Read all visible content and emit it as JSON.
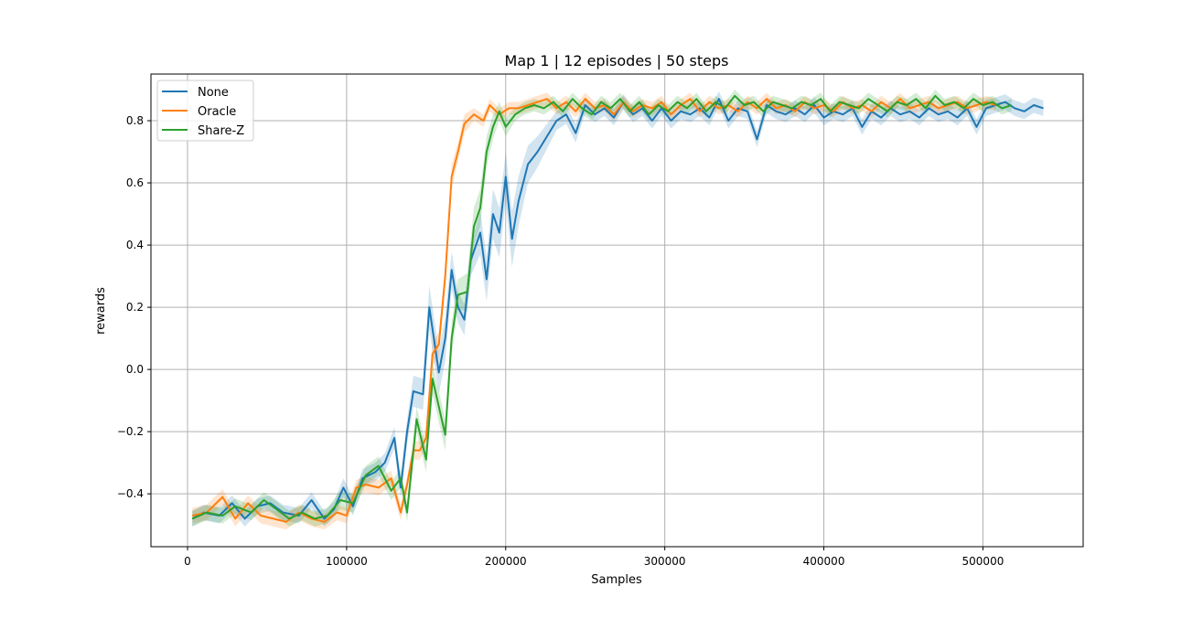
{
  "chart_data": {
    "type": "line",
    "title": "Map 1 | 12 episodes | 50 steps",
    "xlabel": "Samples",
    "ylabel": "rewards",
    "xlim": [
      -23000,
      563000
    ],
    "ylim": [
      -0.57,
      0.95
    ],
    "xticks": [
      0,
      100000,
      200000,
      300000,
      400000,
      500000
    ],
    "yticks": [
      -0.4,
      -0.2,
      0.0,
      0.2,
      0.4,
      0.6,
      0.8
    ],
    "ytick_labels": [
      "−0.4",
      "−0.2",
      "0.0",
      "0.2",
      "0.4",
      "0.6",
      "0.8"
    ],
    "grid": true,
    "legend_position": "top-left",
    "series": [
      {
        "name": "None",
        "color": "#1f77b4",
        "x": [
          3000,
          10000,
          20000,
          28000,
          36000,
          44000,
          52000,
          60000,
          70000,
          78000,
          86000,
          92000,
          98000,
          104000,
          110000,
          118000,
          124000,
          130000,
          134000,
          138000,
          142000,
          148000,
          152000,
          158000,
          162000,
          166000,
          170000,
          174000,
          178000,
          184000,
          188000,
          192000,
          196000,
          200000,
          204000,
          208000,
          214000,
          220000,
          226000,
          232000,
          238000,
          244000,
          250000,
          256000,
          262000,
          268000,
          274000,
          280000,
          286000,
          292000,
          298000,
          304000,
          310000,
          316000,
          322000,
          328000,
          334000,
          340000,
          346000,
          352000,
          358000,
          364000,
          370000,
          376000,
          382000,
          388000,
          394000,
          400000,
          406000,
          412000,
          418000,
          424000,
          430000,
          436000,
          442000,
          448000,
          454000,
          460000,
          466000,
          472000,
          478000,
          484000,
          490000,
          496000,
          502000,
          508000,
          514000,
          520000,
          526000,
          532000,
          538000
        ],
        "y": [
          -0.48,
          -0.46,
          -0.47,
          -0.43,
          -0.48,
          -0.44,
          -0.43,
          -0.46,
          -0.47,
          -0.42,
          -0.48,
          -0.45,
          -0.38,
          -0.44,
          -0.35,
          -0.33,
          -0.3,
          -0.22,
          -0.38,
          -0.2,
          -0.07,
          -0.08,
          0.2,
          -0.01,
          0.1,
          0.32,
          0.2,
          0.16,
          0.35,
          0.44,
          0.29,
          0.5,
          0.44,
          0.62,
          0.42,
          0.54,
          0.66,
          0.7,
          0.75,
          0.8,
          0.82,
          0.76,
          0.85,
          0.82,
          0.84,
          0.81,
          0.86,
          0.82,
          0.84,
          0.8,
          0.84,
          0.8,
          0.83,
          0.82,
          0.84,
          0.81,
          0.87,
          0.8,
          0.84,
          0.83,
          0.74,
          0.85,
          0.83,
          0.82,
          0.84,
          0.82,
          0.85,
          0.81,
          0.83,
          0.82,
          0.84,
          0.78,
          0.83,
          0.81,
          0.84,
          0.82,
          0.83,
          0.81,
          0.84,
          0.82,
          0.83,
          0.81,
          0.84,
          0.78,
          0.84,
          0.85,
          0.86,
          0.84,
          0.83,
          0.85,
          0.84
        ],
        "band": [
          0.025,
          0.025,
          0.025,
          0.025,
          0.025,
          0.025,
          0.025,
          0.025,
          0.025,
          0.025,
          0.025,
          0.025,
          0.03,
          0.03,
          0.03,
          0.03,
          0.03,
          0.035,
          0.035,
          0.04,
          0.05,
          0.05,
          0.07,
          0.07,
          0.07,
          0.06,
          0.05,
          0.05,
          0.05,
          0.07,
          0.07,
          0.08,
          0.08,
          0.08,
          0.09,
          0.08,
          0.06,
          0.05,
          0.04,
          0.03,
          0.03,
          0.03,
          0.025,
          0.025,
          0.025,
          0.025,
          0.025,
          0.025,
          0.025,
          0.025,
          0.025,
          0.025,
          0.025,
          0.025,
          0.025,
          0.025,
          0.025,
          0.025,
          0.025,
          0.025,
          0.025,
          0.025,
          0.025,
          0.025,
          0.025,
          0.025,
          0.025,
          0.025,
          0.025,
          0.025,
          0.025,
          0.025,
          0.025,
          0.025,
          0.025,
          0.025,
          0.025,
          0.025,
          0.025,
          0.025,
          0.025,
          0.025,
          0.025,
          0.025,
          0.025,
          0.025,
          0.025,
          0.025,
          0.025,
          0.025,
          0.025
        ]
      },
      {
        "name": "Oracle",
        "color": "#ff7f0e",
        "x": [
          3000,
          12000,
          22000,
          30000,
          38000,
          46000,
          54000,
          62000,
          70000,
          78000,
          86000,
          94000,
          100000,
          106000,
          112000,
          120000,
          128000,
          134000,
          138000,
          142000,
          146000,
          150000,
          154000,
          158000,
          162000,
          166000,
          170000,
          174000,
          180000,
          186000,
          190000,
          196000,
          202000,
          208000,
          214000,
          220000,
          226000,
          232000,
          238000,
          244000,
          250000,
          256000,
          262000,
          268000,
          274000,
          280000,
          286000,
          292000,
          298000,
          304000,
          310000,
          316000,
          322000,
          328000,
          334000,
          340000,
          346000,
          352000,
          358000,
          364000,
          370000,
          376000,
          382000,
          388000,
          394000,
          400000,
          406000,
          412000,
          418000,
          424000,
          430000,
          436000,
          442000,
          448000,
          454000,
          460000,
          466000,
          472000,
          478000,
          484000,
          490000,
          496000,
          502000,
          508000
        ],
        "y": [
          -0.47,
          -0.46,
          -0.41,
          -0.48,
          -0.43,
          -0.47,
          -0.48,
          -0.49,
          -0.46,
          -0.48,
          -0.49,
          -0.46,
          -0.47,
          -0.38,
          -0.37,
          -0.38,
          -0.35,
          -0.46,
          -0.37,
          -0.26,
          -0.26,
          -0.22,
          0.05,
          0.08,
          0.3,
          0.62,
          0.7,
          0.79,
          0.82,
          0.8,
          0.85,
          0.82,
          0.84,
          0.84,
          0.85,
          0.86,
          0.87,
          0.84,
          0.86,
          0.83,
          0.87,
          0.84,
          0.85,
          0.82,
          0.86,
          0.83,
          0.85,
          0.84,
          0.86,
          0.82,
          0.85,
          0.87,
          0.83,
          0.86,
          0.84,
          0.85,
          0.83,
          0.86,
          0.84,
          0.87,
          0.84,
          0.85,
          0.83,
          0.86,
          0.84,
          0.85,
          0.83,
          0.86,
          0.84,
          0.85,
          0.83,
          0.86,
          0.84,
          0.87,
          0.84,
          0.85,
          0.86,
          0.84,
          0.85,
          0.86,
          0.84,
          0.85,
          0.86,
          0.85
        ],
        "band": [
          0.025,
          0.025,
          0.025,
          0.025,
          0.025,
          0.025,
          0.025,
          0.025,
          0.025,
          0.025,
          0.025,
          0.025,
          0.025,
          0.025,
          0.025,
          0.025,
          0.025,
          0.025,
          0.025,
          0.03,
          0.03,
          0.03,
          0.04,
          0.04,
          0.04,
          0.04,
          0.03,
          0.03,
          0.02,
          0.02,
          0.02,
          0.02,
          0.02,
          0.02,
          0.02,
          0.02,
          0.02,
          0.02,
          0.02,
          0.02,
          0.02,
          0.02,
          0.02,
          0.02,
          0.02,
          0.02,
          0.02,
          0.02,
          0.02,
          0.02,
          0.02,
          0.02,
          0.02,
          0.02,
          0.02,
          0.02,
          0.02,
          0.02,
          0.02,
          0.02,
          0.02,
          0.02,
          0.02,
          0.02,
          0.02,
          0.02,
          0.02,
          0.02,
          0.02,
          0.02,
          0.02,
          0.02,
          0.02,
          0.02,
          0.02,
          0.02,
          0.02,
          0.02,
          0.02,
          0.02,
          0.02,
          0.02,
          0.02,
          0.02
        ]
      },
      {
        "name": "Share-Z",
        "color": "#2ca02c",
        "x": [
          3000,
          12000,
          22000,
          30000,
          40000,
          48000,
          56000,
          64000,
          72000,
          80000,
          88000,
          96000,
          104000,
          112000,
          120000,
          128000,
          134000,
          138000,
          144000,
          150000,
          154000,
          162000,
          166000,
          170000,
          176000,
          180000,
          184000,
          188000,
          192000,
          196000,
          200000,
          206000,
          212000,
          218000,
          224000,
          230000,
          236000,
          242000,
          248000,
          254000,
          260000,
          266000,
          272000,
          278000,
          284000,
          290000,
          296000,
          302000,
          308000,
          314000,
          320000,
          326000,
          332000,
          338000,
          344000,
          350000,
          356000,
          362000,
          368000,
          374000,
          380000,
          386000,
          392000,
          398000,
          404000,
          410000,
          416000,
          422000,
          428000,
          434000,
          440000,
          446000,
          452000,
          458000,
          464000,
          470000,
          476000,
          482000,
          488000,
          494000,
          500000,
          506000,
          512000,
          518000
        ],
        "y": [
          -0.48,
          -0.46,
          -0.47,
          -0.44,
          -0.46,
          -0.42,
          -0.45,
          -0.48,
          -0.46,
          -0.48,
          -0.47,
          -0.42,
          -0.43,
          -0.34,
          -0.31,
          -0.39,
          -0.35,
          -0.46,
          -0.16,
          -0.29,
          -0.03,
          -0.21,
          0.1,
          0.24,
          0.25,
          0.46,
          0.52,
          0.7,
          0.78,
          0.83,
          0.78,
          0.82,
          0.84,
          0.85,
          0.84,
          0.86,
          0.83,
          0.87,
          0.84,
          0.82,
          0.86,
          0.84,
          0.87,
          0.83,
          0.86,
          0.82,
          0.85,
          0.83,
          0.86,
          0.84,
          0.87,
          0.83,
          0.86,
          0.84,
          0.88,
          0.85,
          0.86,
          0.83,
          0.86,
          0.85,
          0.84,
          0.86,
          0.85,
          0.87,
          0.83,
          0.86,
          0.85,
          0.84,
          0.87,
          0.85,
          0.83,
          0.86,
          0.85,
          0.87,
          0.84,
          0.88,
          0.85,
          0.86,
          0.84,
          0.87,
          0.85,
          0.86,
          0.84,
          0.85
        ],
        "band": [
          0.025,
          0.025,
          0.025,
          0.025,
          0.025,
          0.025,
          0.025,
          0.025,
          0.025,
          0.025,
          0.025,
          0.03,
          0.03,
          0.03,
          0.03,
          0.03,
          0.03,
          0.03,
          0.04,
          0.04,
          0.05,
          0.05,
          0.05,
          0.05,
          0.06,
          0.06,
          0.06,
          0.05,
          0.04,
          0.03,
          0.03,
          0.02,
          0.02,
          0.02,
          0.02,
          0.02,
          0.02,
          0.02,
          0.02,
          0.02,
          0.02,
          0.02,
          0.02,
          0.02,
          0.02,
          0.02,
          0.02,
          0.02,
          0.02,
          0.02,
          0.02,
          0.02,
          0.02,
          0.02,
          0.02,
          0.02,
          0.02,
          0.02,
          0.02,
          0.02,
          0.02,
          0.02,
          0.02,
          0.02,
          0.02,
          0.02,
          0.02,
          0.02,
          0.02,
          0.02,
          0.02,
          0.02,
          0.02,
          0.02,
          0.02,
          0.02,
          0.02,
          0.02,
          0.02,
          0.02,
          0.02,
          0.02,
          0.02,
          0.02
        ]
      }
    ]
  }
}
